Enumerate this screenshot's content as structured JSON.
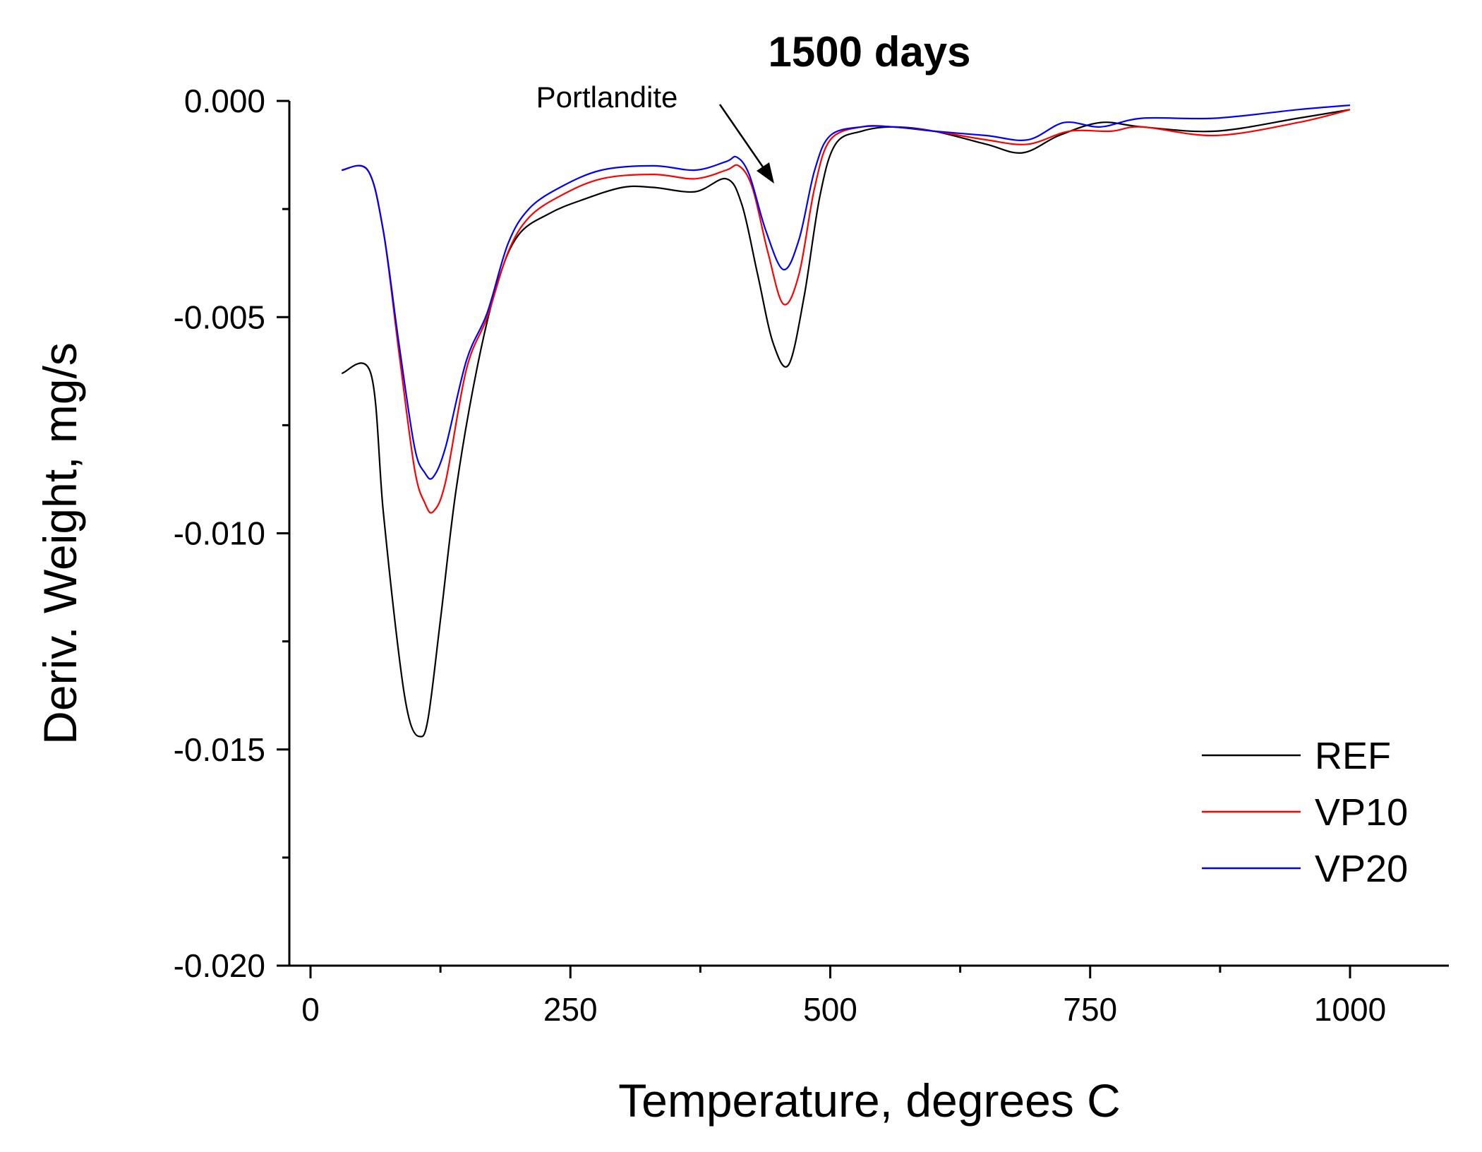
{
  "chart_data": {
    "type": "line",
    "title": "1500 days",
    "xlabel": "Temperature, degrees C",
    "ylabel": "Deriv. Weight, mg/s",
    "xlim": [
      -20,
      1100
    ],
    "ylim": [
      -0.02,
      0.0
    ],
    "x_ticks": [
      0,
      250,
      500,
      750,
      1000
    ],
    "x_tick_labels": [
      "0",
      "250",
      "500",
      "750",
      "1000"
    ],
    "y_ticks": [
      0,
      -0.005,
      -0.01,
      -0.015,
      -0.02
    ],
    "y_tick_labels": [
      "0.000",
      "-0.005",
      "-0.010",
      "-0.015",
      "-0.020"
    ],
    "legend_position": "bottom-right",
    "annotation": {
      "text": "Portlandite",
      "x": 450,
      "y": -0.0019
    },
    "series": [
      {
        "name": "REF",
        "color": "#000000",
        "x": [
          30,
          58,
          70,
          85,
          95,
          105,
          113,
          125,
          140,
          160,
          180,
          200,
          230,
          260,
          300,
          330,
          370,
          400,
          415,
          430,
          445,
          460,
          475,
          490,
          505,
          530,
          560,
          600,
          650,
          685,
          720,
          760,
          800,
          870,
          950,
          1000
        ],
        "y": [
          -0.0063,
          -0.0063,
          -0.0095,
          -0.0128,
          -0.0143,
          -0.0147,
          -0.0143,
          -0.012,
          -0.009,
          -0.0062,
          -0.0042,
          -0.0031,
          -0.0026,
          -0.0023,
          -0.002,
          -0.002,
          -0.0021,
          -0.0018,
          -0.0024,
          -0.004,
          -0.0056,
          -0.0061,
          -0.0045,
          -0.0022,
          -0.001,
          -0.0007,
          -0.0006,
          -0.0007,
          -0.001,
          -0.0012,
          -0.0008,
          -0.0005,
          -0.0006,
          -0.0007,
          -0.0004,
          -0.0002
        ]
      },
      {
        "name": "VP10",
        "color": "#ff0000",
        "x": [
          30,
          55,
          70,
          85,
          100,
          110,
          118,
          130,
          150,
          170,
          190,
          210,
          240,
          280,
          330,
          370,
          400,
          412,
          425,
          440,
          455,
          470,
          485,
          500,
          530,
          560,
          600,
          650,
          690,
          730,
          770,
          800,
          870,
          950,
          1000
        ],
        "y": [
          -0.0016,
          -0.0016,
          -0.003,
          -0.0058,
          -0.0085,
          -0.0093,
          -0.0095,
          -0.0088,
          -0.0062,
          -0.005,
          -0.0035,
          -0.0027,
          -0.0022,
          -0.0018,
          -0.0017,
          -0.0018,
          -0.0016,
          -0.0015,
          -0.002,
          -0.0035,
          -0.0047,
          -0.004,
          -0.002,
          -0.0009,
          -0.0006,
          -0.0006,
          -0.0007,
          -0.0009,
          -0.001,
          -0.0007,
          -0.0007,
          -0.0006,
          -0.0008,
          -0.0005,
          -0.0002
        ]
      },
      {
        "name": "VP20",
        "color": "#0000ff",
        "x": [
          30,
          55,
          70,
          85,
          100,
          110,
          118,
          130,
          150,
          170,
          190,
          210,
          240,
          280,
          330,
          370,
          400,
          410,
          422,
          438,
          455,
          470,
          485,
          500,
          530,
          560,
          600,
          650,
          690,
          725,
          760,
          800,
          870,
          950,
          1000
        ],
        "y": [
          -0.0016,
          -0.0016,
          -0.003,
          -0.0056,
          -0.008,
          -0.0086,
          -0.0087,
          -0.008,
          -0.006,
          -0.0049,
          -0.0033,
          -0.0025,
          -0.002,
          -0.0016,
          -0.0015,
          -0.0016,
          -0.0014,
          -0.0013,
          -0.0017,
          -0.003,
          -0.0039,
          -0.0032,
          -0.0016,
          -0.0008,
          -0.0006,
          -0.0006,
          -0.0007,
          -0.0008,
          -0.0009,
          -0.0005,
          -0.0006,
          -0.0004,
          -0.0004,
          -0.0002,
          -0.0001
        ]
      }
    ]
  }
}
